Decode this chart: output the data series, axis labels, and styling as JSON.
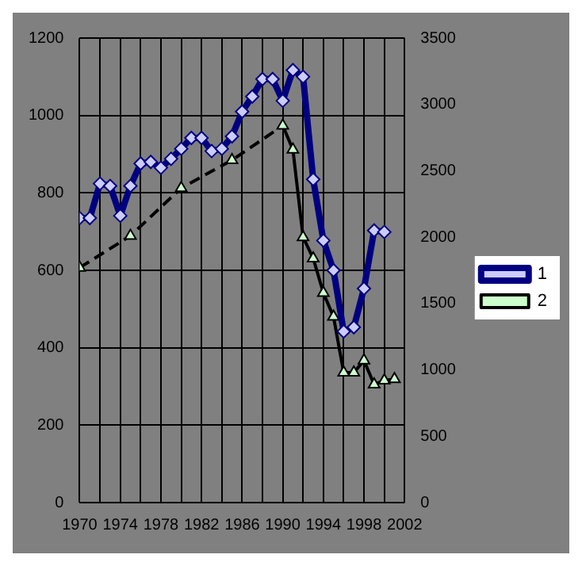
{
  "chart_data": {
    "type": "line",
    "x": [
      1970,
      1971,
      1972,
      1973,
      1974,
      1975,
      1976,
      1977,
      1978,
      1979,
      1980,
      1981,
      1982,
      1983,
      1984,
      1985,
      1986,
      1987,
      1988,
      1989,
      1990,
      1991,
      1992,
      1993,
      1994,
      1995,
      1996,
      1997,
      1998,
      1999,
      2000,
      2001
    ],
    "series": [
      {
        "name": "1",
        "color": "#000080",
        "marker": "diamond",
        "values": [
          735,
          735,
          824,
          818,
          741,
          818,
          876,
          880,
          865,
          888,
          914,
          942,
          942,
          908,
          914,
          946,
          1010,
          1049,
          1094,
          1094,
          1038,
          1117,
          1100,
          835,
          677,
          600,
          442,
          453,
          553,
          703,
          699,
          null
        ]
      },
      {
        "name": "2",
        "color": "#000000",
        "marker": "triangle",
        "axis": "y2",
        "values": [
          1770,
          null,
          null,
          null,
          null,
          2010,
          null,
          null,
          null,
          null,
          2370,
          null,
          null,
          null,
          null,
          2580,
          null,
          null,
          null,
          null,
          2840,
          2660,
          2000,
          1840,
          1580,
          1400,
          980,
          980,
          1070,
          890,
          920,
          930
        ]
      }
    ],
    "xlim": [
      1970,
      2002
    ],
    "xticks": [
      1970,
      {
        "value": 1972,
        "label": null
      },
      1974,
      {
        "value": 1976,
        "label": null
      },
      1978,
      {
        "value": 1980,
        "label": null
      },
      1982,
      {
        "value": 1984,
        "label": null
      },
      1986,
      {
        "value": 1988,
        "label": null
      },
      1990,
      {
        "value": 1992,
        "label": null
      },
      1994,
      {
        "value": 1996,
        "label": null
      },
      1998,
      {
        "value": 2000,
        "label": null
      },
      2002
    ],
    "ylim": [
      0,
      1200
    ],
    "yticks": [
      0,
      200,
      400,
      600,
      800,
      1000,
      1200
    ],
    "y2lim": [
      0,
      3500
    ],
    "y2ticks": [
      0,
      500,
      1000,
      1500,
      2000,
      2500,
      3000,
      3500
    ],
    "grid": true,
    "legend": "right",
    "line_style": "solid"
  }
}
